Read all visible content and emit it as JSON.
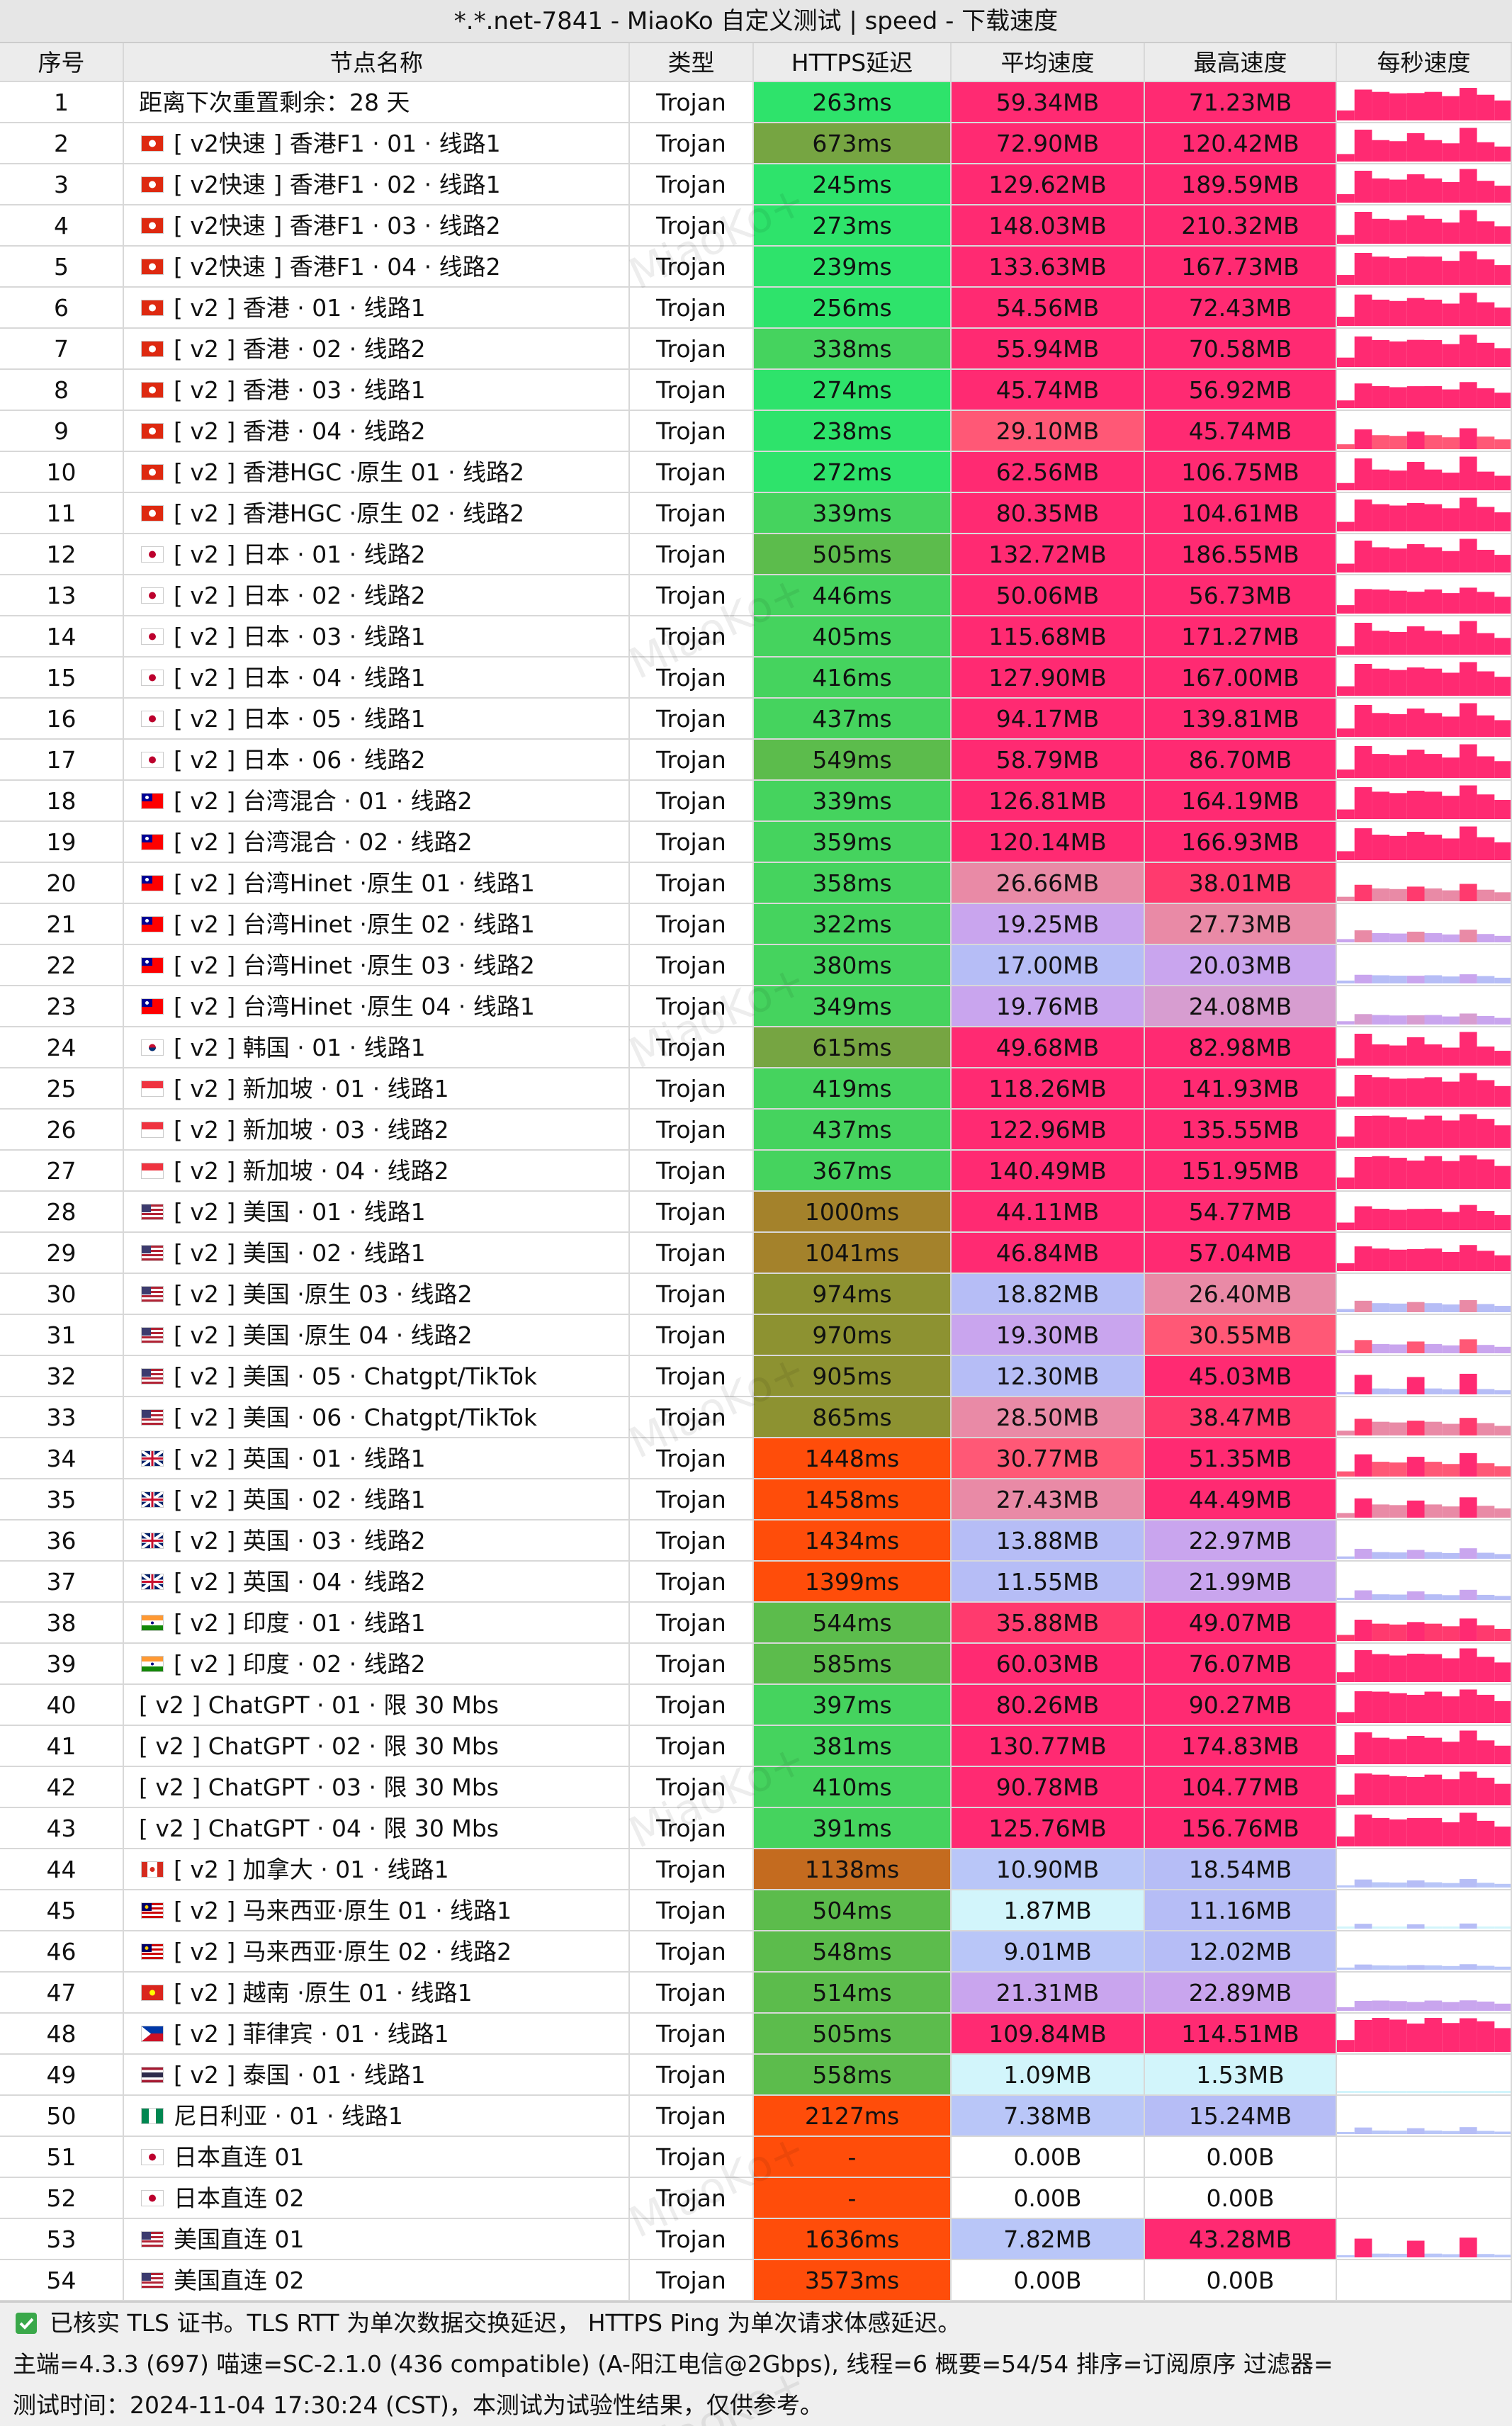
{
  "title": "*.*.net-7841 - MiaoKo 自定义测试 | speed - 下载速度",
  "headers": [
    "序号",
    "节点名称",
    "类型",
    "HTTPS延迟",
    "平均速度",
    "最高速度",
    "每秒速度"
  ],
  "watermark": "MiaoKo+",
  "rows": [
    [
      "1",
      "距离下次重置剩余：28 天",
      "Trojan",
      "263ms",
      "59.34MB",
      "71.23MB"
    ],
    [
      "2",
      "[ v2快速 ] 香港F1 · 01 · 线路1",
      "Trojan",
      "673ms",
      "72.90MB",
      "120.42MB"
    ],
    [
      "3",
      "[ v2快速 ] 香港F1 · 02 · 线路1",
      "Trojan",
      "245ms",
      "129.62MB",
      "189.59MB"
    ],
    [
      "4",
      "[ v2快速 ] 香港F1 · 03 · 线路2",
      "Trojan",
      "273ms",
      "148.03MB",
      "210.32MB"
    ],
    [
      "5",
      "[ v2快速 ] 香港F1 · 04 · 线路2",
      "Trojan",
      "239ms",
      "133.63MB",
      "167.73MB"
    ],
    [
      "6",
      "[ v2 ] 香港 · 01 · 线路1",
      "Trojan",
      "256ms",
      "54.56MB",
      "72.43MB"
    ],
    [
      "7",
      "[ v2 ] 香港 · 02 · 线路2",
      "Trojan",
      "338ms",
      "55.94MB",
      "70.58MB"
    ],
    [
      "8",
      "[ v2 ] 香港 · 03 · 线路1",
      "Trojan",
      "274ms",
      "45.74MB",
      "56.92MB"
    ],
    [
      "9",
      "[ v2 ] 香港 · 04 · 线路2",
      "Trojan",
      "238ms",
      "29.10MB",
      "45.74MB"
    ],
    [
      "10",
      "[ v2 ] 香港HGC ·原生  01 · 线路2",
      "Trojan",
      "272ms",
      "62.56MB",
      "106.75MB"
    ],
    [
      "11",
      "[ v2 ] 香港HGC ·原生  02 · 线路2",
      "Trojan",
      "339ms",
      "80.35MB",
      "104.61MB"
    ],
    [
      "12",
      "[ v2 ] 日本 · 01 · 线路2",
      "Trojan",
      "505ms",
      "132.72MB",
      "186.55MB"
    ],
    [
      "13",
      "[ v2 ] 日本 · 02 · 线路2",
      "Trojan",
      "446ms",
      "50.06MB",
      "56.73MB"
    ],
    [
      "14",
      "[ v2 ] 日本 · 03 · 线路1",
      "Trojan",
      "405ms",
      "115.68MB",
      "171.27MB"
    ],
    [
      "15",
      "[ v2 ] 日本 · 04 · 线路1",
      "Trojan",
      "416ms",
      "127.90MB",
      "167.00MB"
    ],
    [
      "16",
      "[ v2 ] 日本 · 05 · 线路1",
      "Trojan",
      "437ms",
      "94.17MB",
      "139.81MB"
    ],
    [
      "17",
      "[ v2 ] 日本 · 06 · 线路2",
      "Trojan",
      "549ms",
      "58.79MB",
      "86.70MB"
    ],
    [
      "18",
      "[ v2 ] 台湾混合 · 01 · 线路2",
      "Trojan",
      "339ms",
      "126.81MB",
      "164.19MB"
    ],
    [
      "19",
      "[ v2 ] 台湾混合 · 02 · 线路2",
      "Trojan",
      "359ms",
      "120.14MB",
      "166.93MB"
    ],
    [
      "20",
      "[ v2 ] 台湾Hinet ·原生  01 · 线路1",
      "Trojan",
      "358ms",
      "26.66MB",
      "38.01MB"
    ],
    [
      "21",
      "[ v2 ] 台湾Hinet ·原生  02 · 线路1",
      "Trojan",
      "322ms",
      "19.25MB",
      "27.73MB"
    ],
    [
      "22",
      "[ v2 ] 台湾Hinet ·原生  03 · 线路2",
      "Trojan",
      "380ms",
      "17.00MB",
      "20.03MB"
    ],
    [
      "23",
      "[ v2 ] 台湾Hinet ·原生  04 · 线路1",
      "Trojan",
      "349ms",
      "19.76MB",
      "24.08MB"
    ],
    [
      "24",
      "[ v2 ] 韩国 · 01 · 线路1",
      "Trojan",
      "615ms",
      "49.68MB",
      "82.98MB"
    ],
    [
      "25",
      "[ v2 ] 新加坡 · 01 · 线路1",
      "Trojan",
      "419ms",
      "118.26MB",
      "141.93MB"
    ],
    [
      "26",
      "[ v2 ] 新加坡 · 03 · 线路2",
      "Trojan",
      "437ms",
      "122.96MB",
      "135.55MB"
    ],
    [
      "27",
      "[ v2 ] 新加坡 · 04 · 线路2",
      "Trojan",
      "367ms",
      "140.49MB",
      "151.95MB"
    ],
    [
      "28",
      "[ v2 ] 美国 · 01 · 线路1",
      "Trojan",
      "1000ms",
      "44.11MB",
      "54.77MB"
    ],
    [
      "29",
      "[ v2 ] 美国 · 02 · 线路1",
      "Trojan",
      "1041ms",
      "46.84MB",
      "57.04MB"
    ],
    [
      "30",
      "[ v2 ] 美国 ·原生 03 · 线路2",
      "Trojan",
      "974ms",
      "18.82MB",
      "26.40MB"
    ],
    [
      "31",
      "[ v2 ] 美国 ·原生 04 · 线路2",
      "Trojan",
      "970ms",
      "19.30MB",
      "30.55MB"
    ],
    [
      "32",
      "[ v2 ] 美国 · 05 · Chatgpt/TikTok",
      "Trojan",
      "905ms",
      "12.30MB",
      "45.03MB"
    ],
    [
      "33",
      "[ v2 ] 美国 · 06 · Chatgpt/TikTok",
      "Trojan",
      "865ms",
      "28.50MB",
      "38.47MB"
    ],
    [
      "34",
      "[ v2 ] 英国 · 01 · 线路1",
      "Trojan",
      "1448ms",
      "30.77MB",
      "51.35MB"
    ],
    [
      "35",
      "[ v2 ] 英国 · 02 · 线路1",
      "Trojan",
      "1458ms",
      "27.43MB",
      "44.49MB"
    ],
    [
      "36",
      "[ v2 ] 英国 · 03 · 线路2",
      "Trojan",
      "1434ms",
      "13.88MB",
      "22.97MB"
    ],
    [
      "37",
      "[ v2 ] 英国 · 04 · 线路2",
      "Trojan",
      "1399ms",
      "11.55MB",
      "21.99MB"
    ],
    [
      "38",
      "[ v2 ] 印度 · 01 · 线路1",
      "Trojan",
      "544ms",
      "35.88MB",
      "49.07MB"
    ],
    [
      "39",
      "[ v2 ] 印度 · 02 · 线路2",
      "Trojan",
      "585ms",
      "60.03MB",
      "76.07MB"
    ],
    [
      "40",
      "[ v2 ] ChatGPT · 01 · 限 30 Mbs",
      "Trojan",
      "397ms",
      "80.26MB",
      "90.27MB"
    ],
    [
      "41",
      "[ v2 ] ChatGPT · 02 · 限 30 Mbs",
      "Trojan",
      "381ms",
      "130.77MB",
      "174.83MB"
    ],
    [
      "42",
      "[ v2 ] ChatGPT · 03 · 限 30 Mbs",
      "Trojan",
      "410ms",
      "90.78MB",
      "104.77MB"
    ],
    [
      "43",
      "[ v2 ] ChatGPT · 04 · 限 30 Mbs",
      "Trojan",
      "391ms",
      "125.76MB",
      "156.76MB"
    ],
    [
      "44",
      "[ v2 ] 加拿大 · 01 · 线路1",
      "Trojan",
      "1138ms",
      "10.90MB",
      "18.54MB"
    ],
    [
      "45",
      "[ v2 ] 马来西亚·原生  01 · 线路1",
      "Trojan",
      "504ms",
      "1.87MB",
      "11.16MB"
    ],
    [
      "46",
      "[ v2 ] 马来西亚·原生  02 · 线路2",
      "Trojan",
      "548ms",
      "9.01MB",
      "12.02MB"
    ],
    [
      "47",
      "[ v2 ] 越南 ·原生 01 · 线路1",
      "Trojan",
      "514ms",
      "21.31MB",
      "22.89MB"
    ],
    [
      "48",
      "[ v2 ] 菲律宾 · 01 · 线路1",
      "Trojan",
      "505ms",
      "109.84MB",
      "114.51MB"
    ],
    [
      "49",
      "[ v2 ] 泰国 · 01 · 线路1",
      "Trojan",
      "558ms",
      "1.09MB",
      "1.53MB"
    ],
    [
      "50",
      "尼日利亚 · 01 · 线路1",
      "Trojan",
      "2127ms",
      "7.38MB",
      "15.24MB"
    ],
    [
      "51",
      "日本直连 01",
      "Trojan",
      "-",
      "0.00B",
      "0.00B"
    ],
    [
      "52",
      "日本直连 02",
      "Trojan",
      "-",
      "0.00B",
      "0.00B"
    ],
    [
      "53",
      "美国直连 01",
      "Trojan",
      "1636ms",
      "7.82MB",
      "43.28MB"
    ],
    [
      "54",
      "美国直连 02",
      "Trojan",
      "3573ms",
      "0.00B",
      "0.00B"
    ]
  ],
  "footer": [
    "已核实 TLS 证书。TLS RTT 为单次数据交换延迟， HTTPS Ping 为单次请求体感延迟。",
    "主端=4.3.3 (697) 喵速=SC-2.1.0 (436 compatible) (A-阳江电信@2Gbps), 线程=6 概要=54/54 排序=订阅原序 过滤器=",
    "测试时间：2024-11-04 17:30:24 (CST)，本测试为试验性结果，仅供参考。"
  ]
}
